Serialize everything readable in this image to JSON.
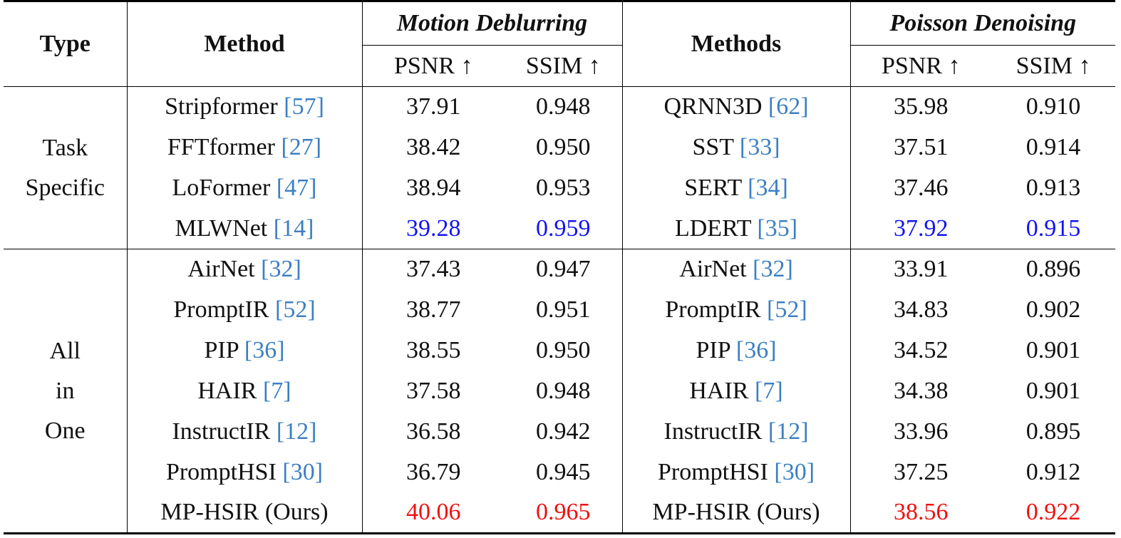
{
  "header": {
    "type": "Type",
    "method": "Method",
    "group1": "Motion Deblurring",
    "methods": "Methods",
    "group2": "Poisson Denoising",
    "psnr": "PSNR ↑",
    "ssim": "SSIM ↑"
  },
  "groups": [
    {
      "type_lines": [
        "Task",
        "Specific"
      ],
      "rows": [
        {
          "m1": "Stripformer",
          "r1": "57",
          "p1": "37.91",
          "s1": "0.948",
          "m2": "QRNN3D",
          "r2": "62",
          "p2": "35.98",
          "s2": "0.910"
        },
        {
          "m1": "FFTformer",
          "r1": "27",
          "p1": "38.42",
          "s1": "0.950",
          "m2": "SST",
          "r2": "33",
          "p2": "37.51",
          "s2": "0.914"
        },
        {
          "m1": "LoFormer",
          "r1": "47",
          "p1": "38.94",
          "s1": "0.953",
          "m2": "SERT",
          "r2": "34",
          "p2": "37.46",
          "s2": "0.913"
        },
        {
          "m1": "MLWNet",
          "r1": "14",
          "p1": "39.28",
          "s1": "0.959",
          "m2": "LDERT",
          "r2": "35",
          "p2": "37.92",
          "s2": "0.915",
          "highlight": "blue"
        }
      ]
    },
    {
      "type_lines": [
        "All",
        "in",
        "One"
      ],
      "rows": [
        {
          "m1": "AirNet",
          "r1": "32",
          "p1": "37.43",
          "s1": "0.947",
          "m2": "AirNet",
          "r2": "32",
          "p2": "33.91",
          "s2": "0.896"
        },
        {
          "m1": "PromptIR",
          "r1": "52",
          "p1": "38.77",
          "s1": "0.951",
          "m2": "PromptIR",
          "r2": "52",
          "p2": "34.83",
          "s2": "0.902"
        },
        {
          "m1": "PIP",
          "r1": "36",
          "p1": "38.55",
          "s1": "0.950",
          "m2": "PIP",
          "r2": "36",
          "p2": "34.52",
          "s2": "0.901"
        },
        {
          "m1": "HAIR",
          "r1": "7",
          "p1": "37.58",
          "s1": "0.948",
          "m2": "HAIR",
          "r2": "7",
          "p2": "34.38",
          "s2": "0.901"
        },
        {
          "m1": "InstructIR",
          "r1": "12",
          "p1": "36.58",
          "s1": "0.942",
          "m2": "InstructIR",
          "r2": "12",
          "p2": "33.96",
          "s2": "0.895"
        },
        {
          "m1": "PromptHSI",
          "r1": "30",
          "p1": "36.79",
          "s1": "0.945",
          "m2": "PromptHSI",
          "r2": "30",
          "p2": "37.25",
          "s2": "0.912"
        },
        {
          "m1": "MP-HSIR (Ours)",
          "r1": "",
          "p1": "40.06",
          "s1": "0.965",
          "m2": "MP-HSIR (Ours)",
          "r2": "",
          "p2": "38.56",
          "s2": "0.922",
          "highlight": "red"
        }
      ]
    }
  ],
  "colors": {
    "reference": "#3d7fc2",
    "best_specific": "#1414f0",
    "best_overall": "#ee1111"
  }
}
